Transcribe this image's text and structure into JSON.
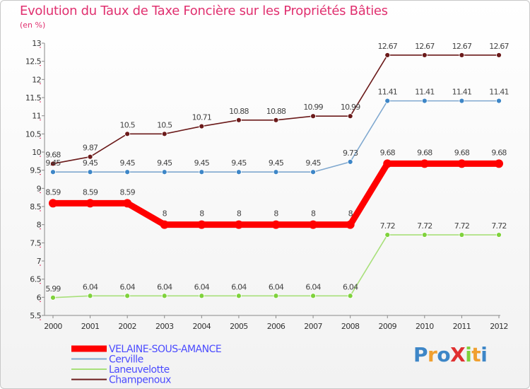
{
  "chart_data": {
    "type": "line",
    "title": "Evolution du Taux de Taxe Foncière sur les Propriétés Bâties",
    "subtitle": "(en %)",
    "x": [
      "2000",
      "2001",
      "2002",
      "2003",
      "2004",
      "2005",
      "2006",
      "2007",
      "2008",
      "2009",
      "2010",
      "2011",
      "2012"
    ],
    "ylim": [
      5.5,
      13
    ],
    "yticks": [
      "5.5",
      "6",
      "6.5",
      "7",
      "7.5",
      "8",
      "8.5",
      "9",
      "9.5",
      "10",
      "10.5",
      "11",
      "11.5",
      "12",
      "12.5",
      "13"
    ],
    "series": [
      {
        "name": "Champenoux",
        "color": "#6b1a1a",
        "marker": "#6b1a1a",
        "values": [
          9.68,
          9.87,
          10.5,
          10.5,
          10.71,
          10.88,
          10.88,
          10.99,
          10.99,
          12.67,
          12.67,
          12.67,
          12.67
        ],
        "labels": [
          "9.68",
          "9.87",
          "10.5",
          "10.5",
          "10.71",
          "10.88",
          "10.88",
          "10.99",
          "10.99",
          "12.67",
          "12.67",
          "12.67",
          "12.67"
        ]
      },
      {
        "name": "Cerville",
        "color": "#7fa8cf",
        "marker": "#3d86c7",
        "values": [
          9.45,
          9.45,
          9.45,
          9.45,
          9.45,
          9.45,
          9.45,
          9.45,
          9.73,
          11.41,
          11.41,
          11.41,
          11.41
        ],
        "labels": [
          "9.45",
          "9.45",
          "9.45",
          "9.45",
          "9.45",
          "9.45",
          "9.45",
          "9.45",
          "9.73",
          "11.41",
          "11.41",
          "11.41",
          "11.41"
        ]
      },
      {
        "name": "VELAINE-SOUS-AMANCE",
        "color": "#ff0000",
        "marker": "#ff0000",
        "values": [
          8.59,
          8.59,
          8.59,
          8,
          8,
          8,
          8,
          8,
          8,
          9.68,
          9.68,
          9.68,
          9.68
        ],
        "labels": [
          "8.59",
          "8.59",
          "8.59",
          "8",
          "8",
          "8",
          "8",
          "8",
          "8",
          "9.68",
          "9.68",
          "9.68",
          "9.68"
        ]
      },
      {
        "name": "Laneuvelotte",
        "color": "#a8e07a",
        "marker": "#7fd23c",
        "values": [
          5.99,
          6.04,
          6.04,
          6.04,
          6.04,
          6.04,
          6.04,
          6.04,
          6.04,
          7.72,
          7.72,
          7.72,
          7.72
        ],
        "labels": [
          "5.99",
          "6.04",
          "6.04",
          "6.04",
          "6.04",
          "6.04",
          "6.04",
          "6.04",
          "6.04",
          "7.72",
          "7.72",
          "7.72",
          "7.72"
        ]
      }
    ],
    "legend": [
      {
        "name": "VELAINE-SOUS-AMANCE",
        "color": "#ff0000"
      },
      {
        "name": "Cerville",
        "color": "#7fa8cf"
      },
      {
        "name": "Laneuvelotte",
        "color": "#a8e07a"
      },
      {
        "name": "Champenoux",
        "color": "#6b1a1a"
      }
    ],
    "legend_position": "bottom-left",
    "grid": false
  },
  "brand": {
    "text": "ProXiti",
    "colors": [
      "#3d86c7",
      "#f0a030",
      "#3d86c7",
      "#e03030",
      "#7fd23c",
      "#f0a030",
      "#3d86c7"
    ]
  }
}
